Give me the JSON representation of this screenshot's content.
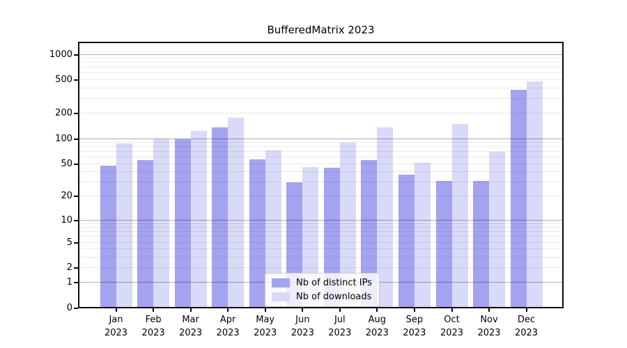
{
  "chart_data": {
    "type": "bar",
    "title": "BufferedMatrix 2023",
    "year_label": "2023",
    "months": [
      "Jan",
      "Feb",
      "Mar",
      "Apr",
      "May",
      "Jun",
      "Jul",
      "Aug",
      "Sep",
      "Oct",
      "Nov",
      "Dec"
    ],
    "series": [
      {
        "name": "Nb of distinct IPs",
        "color": "#a3a3f0",
        "values": [
          48,
          56,
          100,
          136,
          57,
          30,
          45,
          56,
          37,
          31,
          31,
          385
        ]
      },
      {
        "name": "Nb of downloads",
        "color": "#d9d9f8",
        "values": [
          89,
          100,
          125,
          178,
          73,
          46,
          90,
          137,
          52,
          151,
          70,
          478
        ]
      }
    ],
    "yaxis": {
      "scale": "log(1+x)",
      "ylim": [
        0,
        1450
      ],
      "ticks": [
        {
          "label": "1000",
          "value": 1000,
          "major": true
        },
        {
          "label": "500",
          "value": 500,
          "major": false
        },
        {
          "label": "200",
          "value": 200,
          "major": false
        },
        {
          "label": "100",
          "value": 100,
          "major": true
        },
        {
          "label": "50",
          "value": 50,
          "major": false
        },
        {
          "label": "20",
          "value": 20,
          "major": false
        },
        {
          "label": "10",
          "value": 10,
          "major": true
        },
        {
          "label": "5",
          "value": 5,
          "major": false
        },
        {
          "label": "2",
          "value": 2,
          "major": false
        },
        {
          "label": "1",
          "value": 1,
          "major": true
        },
        {
          "label": "0",
          "value": 0,
          "major": false
        }
      ],
      "minor_gridlines": [
        3,
        4,
        6,
        7,
        8,
        9,
        30,
        40,
        60,
        70,
        80,
        90,
        300,
        400,
        600,
        700,
        800,
        900
      ]
    },
    "legend_position": "lower center",
    "grid": "on",
    "background": "#ffffff"
  }
}
